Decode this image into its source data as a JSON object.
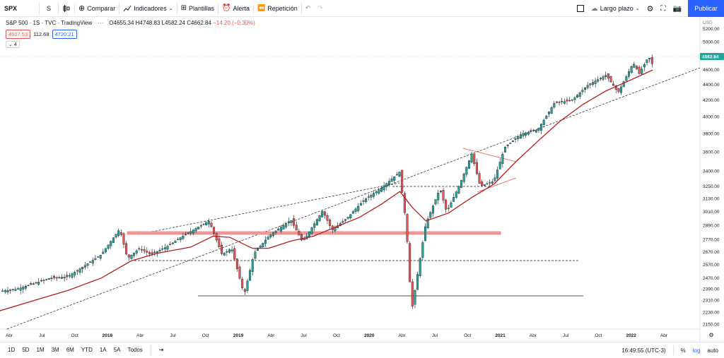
{
  "toolbar": {
    "symbol": "SPX",
    "interval": "S",
    "compare": "Comparar",
    "indicators": "Indicadores",
    "templates": "Plantillas",
    "alert": "Alerta",
    "replay": "Repetición",
    "layout_name": "Largo plazo",
    "publish": "Publicar"
  },
  "legend": {
    "title": "S&P 500 · 1S · TVC · TradingView",
    "open": "O4655.34",
    "high": "H4748.83",
    "low": "L4582.24",
    "close": "C4662.84",
    "change": "−14.20 (−0.30%)",
    "ma1": "4607.53",
    "ma_period": "112.68",
    "ma2": "4720.21",
    "collapse": "4"
  },
  "price_axis": {
    "currency": "USD",
    "last_price": "4662.84"
  },
  "colors": {
    "up": "#26a69a",
    "down": "#ef5350",
    "ma": "#b71c1c",
    "accent": "#2962ff"
  },
  "chart_data": {
    "type": "candlestick",
    "title": "S&P 500 · 1S · TVC · TradingView",
    "interval": "1W",
    "y_scale": "log",
    "ylim": [
      2130,
      5300
    ],
    "y_ticks": [
      "5200.00",
      "5000.00",
      "4800.00",
      "4600.00",
      "4400.00",
      "4200.00",
      "4000.00",
      "3800.00",
      "3600.00",
      "3400.00",
      "3250.00",
      "3130.00",
      "3010.00",
      "2890.00",
      "2770.00",
      "2670.00",
      "2570.00",
      "2470.00",
      "2390.00",
      "2310.00",
      "2230.00",
      "2150.00"
    ],
    "x_ticks": [
      "Abr",
      "Jul",
      "Oct",
      "2018",
      "Abr",
      "Jul",
      "Oct",
      "2019",
      "Abr",
      "Jul",
      "Oct",
      "2020",
      "Abr",
      "Jul",
      "Oct",
      "2021",
      "Abr",
      "Jul",
      "Oct",
      "2022",
      "Abr"
    ],
    "xlim": [
      "2017-03-01",
      "2022-05-15"
    ],
    "series": [
      {
        "points": [
          [
            "2017-03-01",
            2375
          ],
          [
            "2017-04-15",
            2390
          ],
          [
            "2017-06-01",
            2430
          ],
          [
            "2017-07-15",
            2470
          ],
          [
            "2017-09-01",
            2480
          ],
          [
            "2017-10-15",
            2560
          ],
          [
            "2017-12-01",
            2650
          ],
          [
            "2018-01-20",
            2860
          ],
          [
            "2018-02-10",
            2620
          ],
          [
            "2018-03-15",
            2700
          ],
          [
            "2018-04-15",
            2650
          ],
          [
            "2018-06-01",
            2720
          ],
          [
            "2018-07-15",
            2810
          ],
          [
            "2018-09-20",
            2930
          ],
          [
            "2018-10-25",
            2650
          ],
          [
            "2018-11-20",
            2700
          ],
          [
            "2018-12-24",
            2350
          ],
          [
            "2019-01-20",
            2660
          ],
          [
            "2019-03-01",
            2800
          ],
          [
            "2019-04-30",
            2940
          ],
          [
            "2019-06-01",
            2750
          ],
          [
            "2019-07-25",
            3020
          ],
          [
            "2019-08-20",
            2850
          ],
          [
            "2019-10-01",
            2960
          ],
          [
            "2019-11-15",
            3120
          ],
          [
            "2019-12-31",
            3230
          ],
          [
            "2020-02-19",
            3390
          ],
          [
            "2020-03-08",
            2900
          ],
          [
            "2020-03-23",
            2240
          ],
          [
            "2020-04-30",
            2900
          ],
          [
            "2020-06-08",
            3230
          ],
          [
            "2020-06-26",
            3010
          ],
          [
            "2020-08-01",
            3270
          ],
          [
            "2020-09-02",
            3580
          ],
          [
            "2020-09-25",
            3250
          ],
          [
            "2020-11-01",
            3300
          ],
          [
            "2020-12-01",
            3650
          ],
          [
            "2021-01-15",
            3800
          ],
          [
            "2021-03-01",
            3850
          ],
          [
            "2021-04-15",
            4170
          ],
          [
            "2021-06-01",
            4200
          ],
          [
            "2021-07-15",
            4400
          ],
          [
            "2021-09-02",
            4530
          ],
          [
            "2021-10-05",
            4300
          ],
          [
            "2021-11-15",
            4700
          ],
          [
            "2021-12-01",
            4550
          ],
          [
            "2021-12-27",
            4790
          ],
          [
            "2022-01-07",
            4662.84
          ]
        ]
      },
      {
        "name": "MA",
        "points": [
          [
            "2017-03-01",
            2240
          ],
          [
            "2017-06-01",
            2310
          ],
          [
            "2017-09-01",
            2380
          ],
          [
            "2017-12-01",
            2470
          ],
          [
            "2018-02-20",
            2600
          ],
          [
            "2018-05-01",
            2660
          ],
          [
            "2018-08-01",
            2710
          ],
          [
            "2018-10-01",
            2800
          ],
          [
            "2018-11-15",
            2790
          ],
          [
            "2019-01-15",
            2700
          ],
          [
            "2019-03-01",
            2700
          ],
          [
            "2019-05-01",
            2760
          ],
          [
            "2019-07-01",
            2800
          ],
          [
            "2019-09-01",
            2880
          ],
          [
            "2019-11-01",
            2960
          ],
          [
            "2020-01-01",
            3080
          ],
          [
            "2020-02-20",
            3200
          ],
          [
            "2020-03-25",
            3050
          ],
          [
            "2020-05-01",
            2930
          ],
          [
            "2020-07-01",
            3000
          ],
          [
            "2020-09-01",
            3140
          ],
          [
            "2020-11-01",
            3270
          ],
          [
            "2021-01-01",
            3500
          ],
          [
            "2021-03-01",
            3720
          ],
          [
            "2021-05-01",
            3950
          ],
          [
            "2021-07-01",
            4150
          ],
          [
            "2021-09-01",
            4320
          ],
          [
            "2021-11-01",
            4450
          ],
          [
            "2022-01-07",
            4600
          ]
        ]
      }
    ]
  },
  "bottombar": {
    "ranges": [
      "1D",
      "5D",
      "1M",
      "3M",
      "6M",
      "YTD",
      "1A",
      "5A",
      "Todos"
    ],
    "time": "16:49:55 (UTC-3)",
    "percent": "%",
    "log": "log",
    "auto": "auto"
  }
}
